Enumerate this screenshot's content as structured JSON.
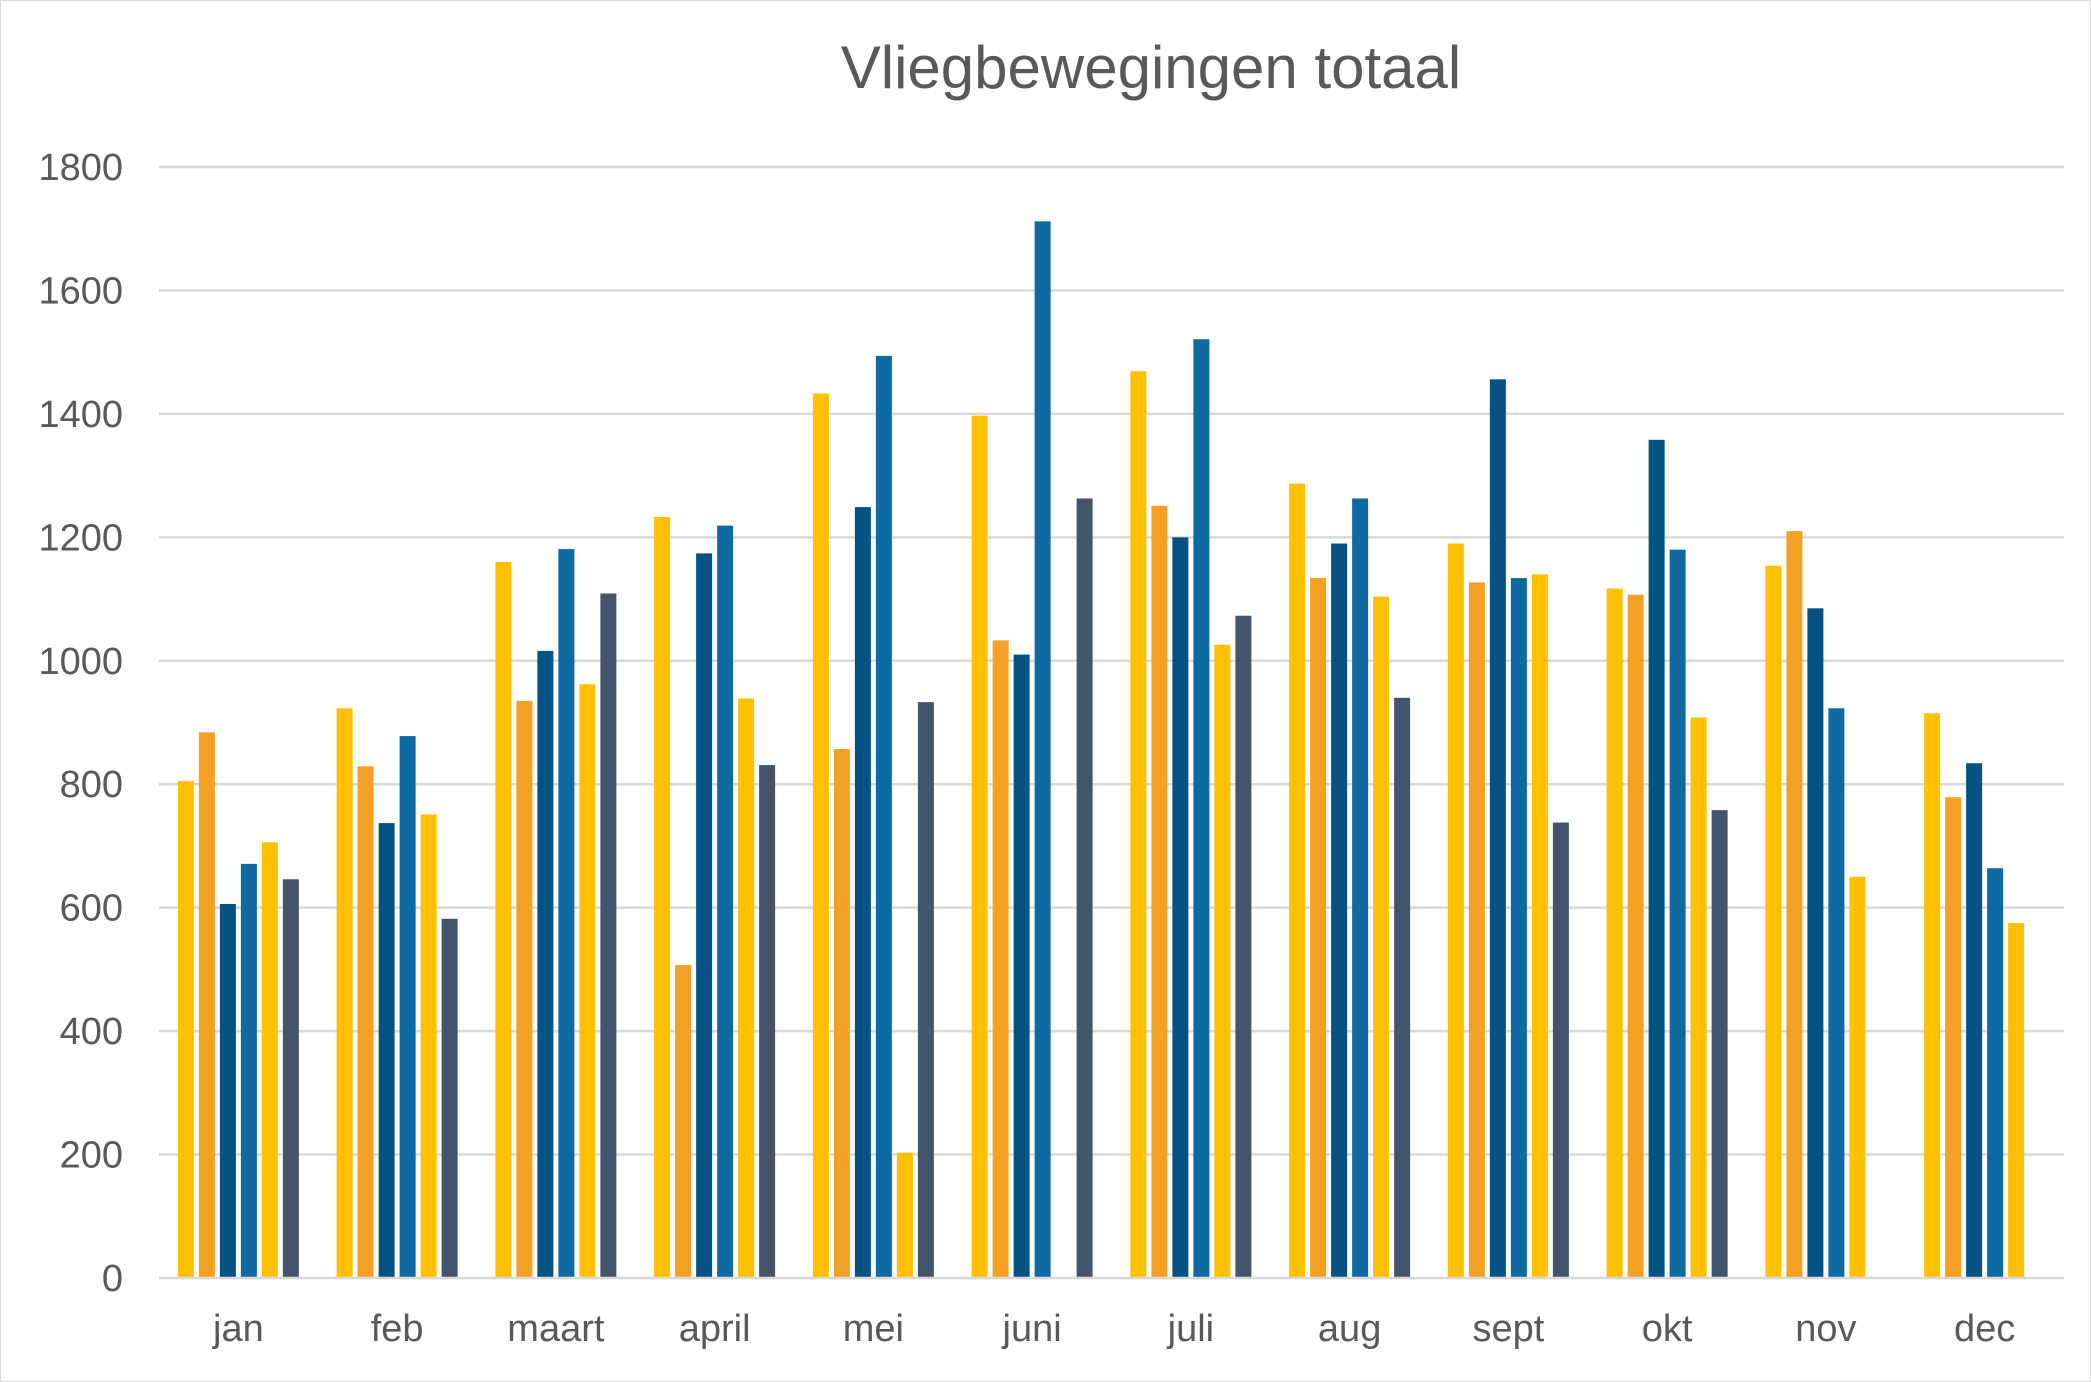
{
  "chart_data": {
    "type": "bar",
    "title": "Vliegbewegingen totaal",
    "xlabel": "",
    "ylabel": "",
    "ylim": [
      0,
      1800
    ],
    "yticks": [
      0,
      200,
      400,
      600,
      800,
      1000,
      1200,
      1400,
      1600,
      1800
    ],
    "grid": true,
    "legend": "none",
    "categories": [
      "jan",
      "feb",
      "maart",
      "april",
      "mei",
      "juni",
      "juli",
      "aug",
      "sept",
      "okt",
      "nov",
      "dec"
    ],
    "series": [
      {
        "color": "#ffc000",
        "values": [
          805,
          923,
          1160,
          1233,
          1433,
          1397,
          1469,
          1287,
          1190,
          1117,
          1154,
          915
        ]
      },
      {
        "color": "#f4a024",
        "values": [
          884,
          829,
          935,
          507,
          857,
          1033,
          1251,
          1134,
          1127,
          1107,
          1210,
          779
        ]
      },
      {
        "color": "#045384",
        "values": [
          606,
          737,
          1016,
          1174,
          1249,
          1010,
          1200,
          1190,
          1456,
          1358,
          1085,
          834
        ]
      },
      {
        "color": "#0f6aa3",
        "values": [
          671,
          878,
          1181,
          1219,
          1494,
          1712,
          1521,
          1263,
          1134,
          1180,
          923,
          664
        ]
      },
      {
        "color": "#ffc000",
        "values": [
          706,
          751,
          962,
          939,
          203,
          null,
          1026,
          1104,
          1140,
          908,
          650,
          575
        ]
      },
      {
        "color": "#44546a",
        "values": [
          646,
          582,
          1109,
          831,
          933,
          1263,
          1073,
          940,
          738,
          758,
          null,
          null
        ]
      }
    ]
  }
}
